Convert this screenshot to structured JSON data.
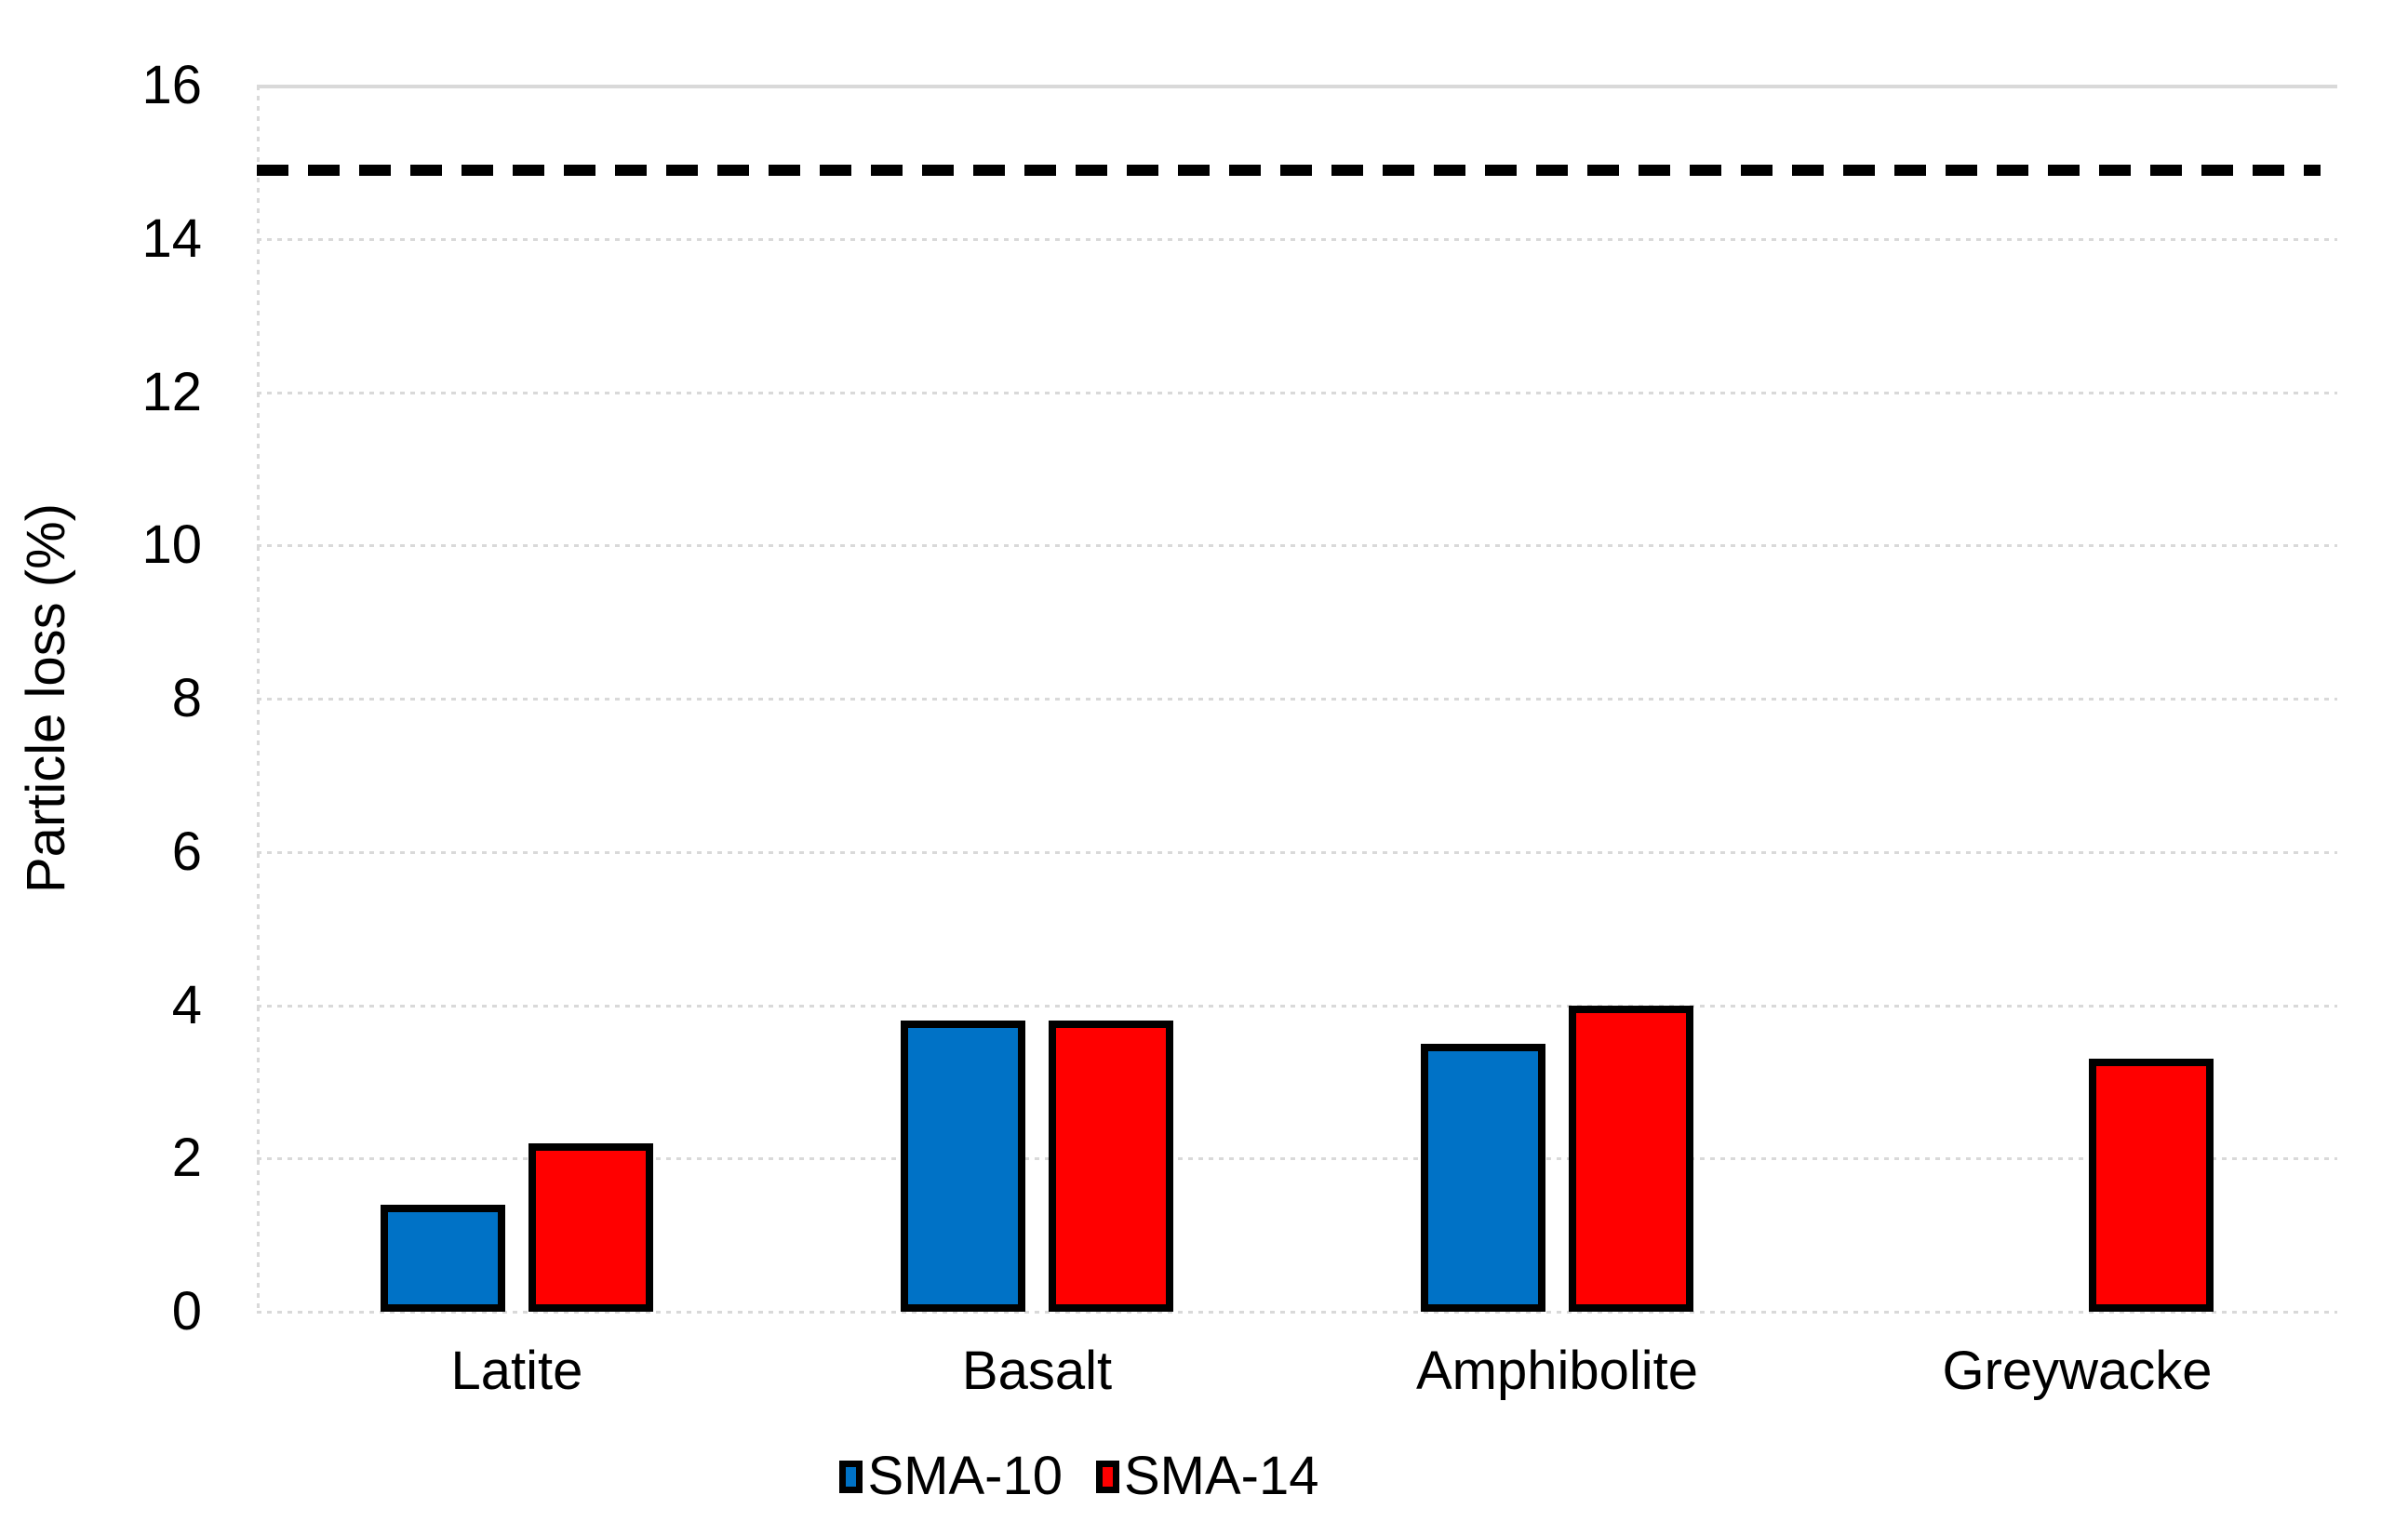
{
  "page": {
    "background": "#FFFFFF"
  },
  "chart_data": {
    "type": "bar",
    "title": "",
    "xlabel": "",
    "ylabel": "Particle loss (%)",
    "ylim": [
      0,
      16
    ],
    "ytick_step": 2,
    "grid": true,
    "legend_position": "bottom",
    "categories": [
      "Latite",
      "Basalt",
      "Amphibolite",
      "Greywacke"
    ],
    "series": [
      {
        "name": "SMA-10",
        "color": "#0072C6",
        "values": [
          1.4,
          3.8,
          3.5,
          null
        ]
      },
      {
        "name": "SMA-14",
        "color": "#FF0000",
        "values": [
          2.2,
          3.8,
          4.0,
          3.3
        ]
      }
    ],
    "limit_line": {
      "value": 14.9,
      "color": "#000000",
      "style": "dashed"
    },
    "colors": {
      "gridline": "#D9D9D9",
      "bar_border": "#000000",
      "text": "#000000"
    }
  }
}
